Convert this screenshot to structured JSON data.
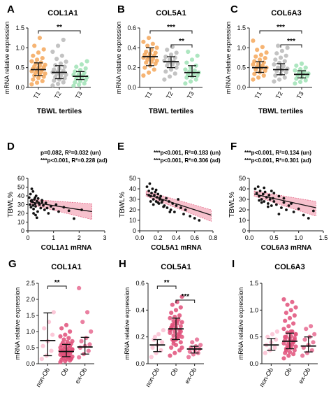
{
  "panel_letters": [
    "A",
    "B",
    "C",
    "D",
    "E",
    "F",
    "G",
    "H",
    "I"
  ],
  "chart_data": [
    {
      "id": "A",
      "type": "scatter",
      "title": "COL1A1",
      "xlabel": "TBWL tertiles",
      "ylabel": "mRNA relative expression",
      "categories": [
        "T1",
        "T2",
        "T3"
      ],
      "ylim": [
        0,
        1.5
      ],
      "yticks": [
        "0.0",
        "0.5",
        "1.0",
        "1.5"
      ],
      "ytick_values": [
        0,
        0.5,
        1.0,
        1.5
      ],
      "colors": [
        "#f4a75a",
        "#b9b9b9",
        "#9fe2b5"
      ],
      "series": [
        {
          "values": [
            0.08,
            0.12,
            0.16,
            0.2,
            0.24,
            0.27,
            0.3,
            0.32,
            0.35,
            0.37,
            0.39,
            0.41,
            0.43,
            0.45,
            0.47,
            0.49,
            0.51,
            0.53,
            0.55,
            0.57,
            0.6,
            0.63,
            0.66,
            0.7,
            0.74,
            0.8,
            0.88,
            0.96,
            1.05,
            1.25
          ]
        },
        {
          "values": [
            0.05,
            0.09,
            0.13,
            0.17,
            0.2,
            0.23,
            0.26,
            0.29,
            0.32,
            0.34,
            0.36,
            0.38,
            0.4,
            0.42,
            0.45,
            0.48,
            0.52,
            0.56,
            0.6,
            0.65,
            0.72,
            0.8,
            0.9,
            1.05,
            1.2
          ]
        },
        {
          "values": [
            0.04,
            0.07,
            0.1,
            0.13,
            0.16,
            0.19,
            0.22,
            0.24,
            0.26,
            0.28,
            0.3,
            0.32,
            0.34,
            0.37,
            0.4,
            0.44,
            0.48,
            0.52,
            0.58,
            0.66
          ]
        }
      ],
      "medians": [
        0.45,
        0.38,
        0.28
      ],
      "iqr": [
        [
          0.3,
          0.62
        ],
        [
          0.22,
          0.55
        ],
        [
          0.2,
          0.4
        ]
      ],
      "significance": [
        {
          "from": 0,
          "to": 2,
          "label": "**"
        }
      ]
    },
    {
      "id": "B",
      "type": "scatter",
      "title": "COL5A1",
      "xlabel": "TBWL tertiles",
      "ylabel": "mRNA relative expression",
      "categories": [
        "T1",
        "T2",
        "T3"
      ],
      "ylim": [
        0,
        0.6
      ],
      "yticks": [
        "0.0",
        "0.2",
        "0.4",
        "0.6"
      ],
      "ytick_values": [
        0,
        0.2,
        0.4,
        0.6
      ],
      "colors": [
        "#f4a75a",
        "#b9b9b9",
        "#9fe2b5"
      ],
      "series": [
        {
          "values": [
            0.12,
            0.15,
            0.18,
            0.2,
            0.22,
            0.24,
            0.25,
            0.26,
            0.27,
            0.28,
            0.29,
            0.3,
            0.31,
            0.32,
            0.33,
            0.34,
            0.35,
            0.36,
            0.38,
            0.4,
            0.42,
            0.44,
            0.46,
            0.5
          ]
        },
        {
          "values": [
            0.08,
            0.11,
            0.14,
            0.16,
            0.18,
            0.2,
            0.22,
            0.23,
            0.24,
            0.25,
            0.26,
            0.27,
            0.28,
            0.3,
            0.31,
            0.33,
            0.35,
            0.38,
            0.41
          ]
        },
        {
          "values": [
            0.04,
            0.06,
            0.08,
            0.1,
            0.11,
            0.12,
            0.13,
            0.14,
            0.15,
            0.16,
            0.17,
            0.18,
            0.2,
            0.22,
            0.25,
            0.28,
            0.32,
            0.36
          ]
        }
      ],
      "medians": [
        0.31,
        0.26,
        0.15
      ],
      "iqr": [
        [
          0.22,
          0.4
        ],
        [
          0.2,
          0.31
        ],
        [
          0.11,
          0.22
        ]
      ],
      "significance": [
        {
          "from": 0,
          "to": 2,
          "label": "***"
        },
        {
          "from": 1,
          "to": 2,
          "label": "**"
        }
      ]
    },
    {
      "id": "C",
      "type": "scatter",
      "title": "COL6A3",
      "xlabel": "TBWL tertiles",
      "ylabel": "mRNA relative expression",
      "categories": [
        "T1",
        "T2",
        "T3"
      ],
      "ylim": [
        0,
        1.5
      ],
      "yticks": [
        "0.0",
        "0.5",
        "1.0",
        "1.5"
      ],
      "ytick_values": [
        0,
        0.5,
        1.0,
        1.5
      ],
      "colors": [
        "#f4a75a",
        "#b9b9b9",
        "#9fe2b5"
      ],
      "series": [
        {
          "values": [
            0.2,
            0.25,
            0.3,
            0.34,
            0.38,
            0.42,
            0.45,
            0.48,
            0.5,
            0.52,
            0.55,
            0.58,
            0.6,
            0.63,
            0.66,
            0.7,
            0.74,
            0.78,
            0.82,
            0.88,
            0.95,
            1.02,
            1.18
          ]
        },
        {
          "values": [
            0.15,
            0.2,
            0.25,
            0.3,
            0.34,
            0.38,
            0.41,
            0.44,
            0.47,
            0.5,
            0.54,
            0.58,
            0.62,
            0.66,
            0.7,
            0.75,
            0.8,
            0.86,
            0.92,
            1.0,
            1.05
          ]
        },
        {
          "values": [
            0.1,
            0.14,
            0.18,
            0.22,
            0.25,
            0.28,
            0.31,
            0.33,
            0.35,
            0.37,
            0.4,
            0.43,
            0.46,
            0.5,
            0.55,
            0.6
          ]
        }
      ],
      "medians": [
        0.5,
        0.45,
        0.33
      ],
      "iqr": [
        [
          0.38,
          0.65
        ],
        [
          0.32,
          0.6
        ],
        [
          0.24,
          0.42
        ]
      ],
      "significance": [
        {
          "from": 0,
          "to": 2,
          "label": "***"
        },
        {
          "from": 1,
          "to": 2,
          "label": "***"
        }
      ]
    },
    {
      "id": "D",
      "type": "scatter",
      "xlabel": "COL1A1 mRNA",
      "ylabel": "TBWL%",
      "xlim": [
        0,
        3
      ],
      "xticks": [
        "0",
        "1",
        "2",
        "3"
      ],
      "xtick_values": [
        0,
        1,
        2,
        3
      ],
      "ylim": [
        0,
        60
      ],
      "yticks": [
        "0",
        "10",
        "20",
        "30",
        "40",
        "50",
        "60"
      ],
      "ytick_values": [
        0,
        10,
        20,
        30,
        40,
        50,
        60
      ],
      "annotations": [
        "p=0.082, R²=0.032 (un)",
        "***p<0.001, R²=0.228 (ad)"
      ],
      "fit": {
        "x0": 0.1,
        "y0": 33,
        "x1": 2.5,
        "y1": 22
      },
      "band": {
        "lower0": 30,
        "upper0": 36,
        "lower1": 13,
        "upper1": 31
      },
      "x": [
        0.05,
        0.08,
        0.1,
        0.12,
        0.15,
        0.18,
        0.2,
        0.22,
        0.25,
        0.28,
        0.3,
        0.32,
        0.35,
        0.38,
        0.4,
        0.45,
        0.5,
        0.55,
        0.6,
        0.65,
        0.7,
        0.8,
        0.9,
        1.0,
        1.1,
        1.2,
        1.4,
        1.6,
        1.8,
        2.1,
        0.15,
        0.22,
        0.3,
        0.42,
        0.55,
        0.75,
        0.12,
        0.2,
        0.28,
        0.35
      ],
      "y": [
        38,
        30,
        42,
        27,
        35,
        33,
        45,
        25,
        36,
        31,
        28,
        40,
        34,
        22,
        37,
        30,
        26,
        33,
        29,
        24,
        32,
        20,
        28,
        25,
        30,
        22,
        27,
        23,
        14,
        24,
        48,
        20,
        18,
        32,
        35,
        26,
        34,
        29,
        38,
        15
      ]
    },
    {
      "id": "E",
      "type": "scatter",
      "xlabel": "COL5A1 mRNA",
      "ylabel": "TBWL%",
      "xlim": [
        0,
        0.8
      ],
      "xticks": [
        "0.0",
        "0.2",
        "0.4",
        "0.6",
        "0.8"
      ],
      "xtick_values": [
        0,
        0.2,
        0.4,
        0.6,
        0.8
      ],
      "ylim": [
        0,
        50
      ],
      "yticks": [
        "0",
        "10",
        "20",
        "30",
        "40",
        "50"
      ],
      "ytick_values": [
        0,
        10,
        20,
        30,
        40,
        50
      ],
      "annotations": [
        "***p<0.001, R²=0.183 (un)",
        "***p<0.001, R²=0.306 (ad)"
      ],
      "fit": {
        "x0": 0.07,
        "y0": 35,
        "x1": 0.78,
        "y1": 15
      },
      "band": {
        "lower0": 33,
        "upper0": 38,
        "lower1": 9,
        "upper1": 20
      },
      "x": [
        0.08,
        0.1,
        0.11,
        0.12,
        0.13,
        0.14,
        0.15,
        0.16,
        0.17,
        0.18,
        0.19,
        0.2,
        0.21,
        0.22,
        0.23,
        0.24,
        0.25,
        0.27,
        0.29,
        0.3,
        0.32,
        0.34,
        0.36,
        0.38,
        0.4,
        0.42,
        0.45,
        0.48,
        0.5,
        0.55,
        0.6,
        0.65,
        0.12,
        0.15,
        0.18,
        0.22,
        0.26,
        0.33,
        0.1,
        0.2
      ],
      "y": [
        42,
        38,
        45,
        33,
        36,
        40,
        30,
        34,
        37,
        28,
        32,
        35,
        26,
        30,
        33,
        27,
        29,
        24,
        31,
        22,
        28,
        20,
        26,
        18,
        24,
        30,
        22,
        16,
        20,
        14,
        12,
        10,
        28,
        25,
        39,
        31,
        23,
        18,
        34,
        27
      ]
    },
    {
      "id": "F",
      "type": "scatter",
      "xlabel": "COL6A3 mRNA",
      "ylabel": "TBWL%",
      "xlim": [
        0,
        1.5
      ],
      "xticks": [
        "0.0",
        "0.5",
        "1.0",
        "1.5"
      ],
      "xtick_values": [
        0,
        0.5,
        1.0,
        1.5
      ],
      "ylim": [
        0,
        50
      ],
      "yticks": [
        "0",
        "10",
        "20",
        "30",
        "40",
        "50"
      ],
      "ytick_values": [
        0,
        10,
        20,
        30,
        40,
        50
      ],
      "annotations": [
        "***p<0.001, R²=0.134 (un)",
        "***p<0.001, R²=0.301 (ad)"
      ],
      "fit": {
        "x0": 0.1,
        "y0": 35,
        "x1": 1.35,
        "y1": 22
      },
      "band": {
        "lower0": 33,
        "upper0": 38,
        "lower1": 14,
        "upper1": 28
      },
      "x": [
        0.12,
        0.15,
        0.18,
        0.2,
        0.22,
        0.25,
        0.28,
        0.3,
        0.32,
        0.35,
        0.38,
        0.4,
        0.42,
        0.45,
        0.48,
        0.5,
        0.55,
        0.6,
        0.65,
        0.7,
        0.75,
        0.8,
        0.9,
        1.0,
        1.1,
        1.2,
        1.3,
        0.3,
        0.45,
        0.6,
        0.25,
        0.5,
        0.7,
        0.2,
        0.38,
        0.85
      ],
      "y": [
        40,
        36,
        42,
        33,
        38,
        30,
        35,
        28,
        37,
        32,
        26,
        34,
        30,
        24,
        31,
        28,
        25,
        33,
        22,
        27,
        20,
        24,
        18,
        21,
        15,
        12,
        19,
        41,
        38,
        16,
        27,
        36,
        31,
        29,
        23,
        26
      ]
    },
    {
      "id": "G",
      "type": "scatter",
      "title": "COL1A1",
      "ylabel": "mRNA relative expression",
      "categories": [
        "non-Ob",
        "Ob",
        "ex-Ob"
      ],
      "ylim": [
        0,
        2.5
      ],
      "yticks": [
        "0.0",
        "0.5",
        "1.0",
        "1.5",
        "2.0",
        "2.5"
      ],
      "ytick_values": [
        0,
        0.5,
        1.0,
        1.5,
        2.0,
        2.5
      ],
      "colors": [
        "#fbc0d2",
        "#e0507a",
        "#e66a90"
      ],
      "series": [
        {
          "values": [
            0.15,
            0.25,
            0.4,
            0.55,
            0.7,
            0.9,
            1.1,
            1.3,
            1.6
          ]
        },
        {
          "values": [
            0.05,
            0.08,
            0.1,
            0.12,
            0.14,
            0.16,
            0.18,
            0.2,
            0.22,
            0.24,
            0.26,
            0.28,
            0.3,
            0.32,
            0.34,
            0.36,
            0.38,
            0.4,
            0.42,
            0.44,
            0.46,
            0.48,
            0.5,
            0.52,
            0.55,
            0.58,
            0.6,
            0.62,
            0.65,
            0.68,
            0.7,
            0.75,
            0.8,
            0.85,
            0.9,
            1.0,
            1.1,
            1.2,
            0.15,
            0.25,
            0.35,
            0.45,
            0.3,
            0.2,
            0.4
          ]
        },
        {
          "values": [
            0.2,
            0.3,
            0.4,
            0.5,
            0.55,
            0.6,
            0.7,
            0.8,
            1.0,
            1.3,
            1.6,
            2.35
          ]
        }
      ],
      "medians": [
        0.72,
        0.38,
        0.52
      ],
      "iqr": [
        [
          0.25,
          1.58
        ],
        [
          0.22,
          0.6
        ],
        [
          0.3,
          0.82
        ]
      ],
      "significance": [
        {
          "from": 0,
          "to": 1,
          "label": "**"
        }
      ]
    },
    {
      "id": "H",
      "type": "scatter",
      "title": "COL5A1",
      "ylabel": "mRNA relative expression",
      "categories": [
        "non-Ob",
        "Ob",
        "ex-Ob"
      ],
      "ylim": [
        0,
        0.6
      ],
      "yticks": [
        "0.0",
        "0.2",
        "0.4",
        "0.6"
      ],
      "ytick_values": [
        0,
        0.2,
        0.4,
        0.6
      ],
      "colors": [
        "#fbc0d2",
        "#e0507a",
        "#e66a90"
      ],
      "series": [
        {
          "values": [
            0.05,
            0.08,
            0.1,
            0.12,
            0.14,
            0.16,
            0.18,
            0.22,
            0.25,
            0.2
          ]
        },
        {
          "values": [
            0.06,
            0.08,
            0.1,
            0.12,
            0.14,
            0.16,
            0.18,
            0.19,
            0.2,
            0.21,
            0.22,
            0.23,
            0.24,
            0.25,
            0.26,
            0.27,
            0.28,
            0.29,
            0.3,
            0.31,
            0.32,
            0.33,
            0.34,
            0.35,
            0.36,
            0.38,
            0.4,
            0.42,
            0.44,
            0.46,
            0.5,
            0.15,
            0.2,
            0.25,
            0.3,
            0.22,
            0.27,
            0.18,
            0.24,
            0.28,
            0.32,
            0.12,
            0.17
          ]
        },
        {
          "values": [
            0.05,
            0.07,
            0.08,
            0.09,
            0.1,
            0.11,
            0.12,
            0.13,
            0.14,
            0.16,
            0.18
          ]
        }
      ],
      "medians": [
        0.14,
        0.26,
        0.11
      ],
      "iqr": [
        [
          0.09,
          0.18
        ],
        [
          0.18,
          0.34
        ],
        [
          0.08,
          0.13
        ]
      ],
      "significance": [
        {
          "from": 0,
          "to": 1,
          "label": "**"
        },
        {
          "from": 1,
          "to": 2,
          "label": "***"
        }
      ]
    },
    {
      "id": "I",
      "type": "scatter",
      "title": "COL6A3",
      "ylabel": "mRNA relative expression",
      "categories": [
        "non-Ob",
        "Ob",
        "ex-Ob"
      ],
      "ylim": [
        0,
        1.5
      ],
      "yticks": [
        "0.0",
        "0.5",
        "1.0",
        "1.5"
      ],
      "ytick_values": [
        0,
        0.5,
        1.0,
        1.5
      ],
      "colors": [
        "#fbc0d2",
        "#e0507a",
        "#e66a90"
      ],
      "series": [
        {
          "values": [
            0.2,
            0.25,
            0.3,
            0.35,
            0.4,
            0.45,
            0.5,
            0.55,
            0.6
          ]
        },
        {
          "values": [
            0.1,
            0.15,
            0.18,
            0.2,
            0.22,
            0.25,
            0.28,
            0.3,
            0.32,
            0.34,
            0.36,
            0.38,
            0.4,
            0.42,
            0.44,
            0.46,
            0.48,
            0.5,
            0.52,
            0.55,
            0.58,
            0.6,
            0.65,
            0.7,
            0.75,
            0.8,
            0.85,
            0.9,
            0.95,
            1.0,
            1.05,
            1.1,
            1.15,
            1.2,
            0.3,
            0.4,
            0.5,
            0.35,
            0.45,
            0.25,
            0.6,
            0.55
          ]
        },
        {
          "values": [
            0.15,
            0.2,
            0.25,
            0.3,
            0.35,
            0.4,
            0.45,
            0.5,
            0.55,
            0.65,
            0.7
          ]
        }
      ],
      "medians": [
        0.35,
        0.42,
        0.33
      ],
      "iqr": [
        [
          0.25,
          0.47
        ],
        [
          0.28,
          0.57
        ],
        [
          0.22,
          0.5
        ]
      ]
    }
  ]
}
